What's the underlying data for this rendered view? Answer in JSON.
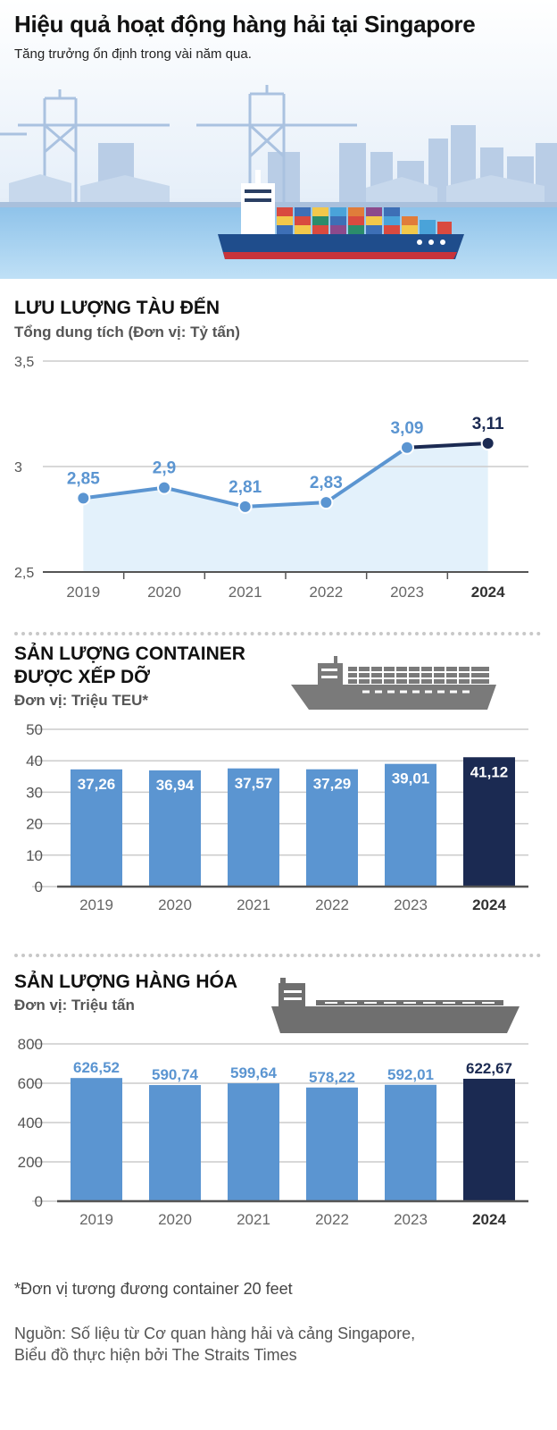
{
  "header": {
    "title": "Hiệu quả hoạt động hàng hải tại Singapore",
    "subtitle": "Tăng trưởng ổn định trong vài năm qua."
  },
  "colors": {
    "light_blue": "#5b95d1",
    "navy": "#1b2a52",
    "area_fill": "#e3f1fb",
    "grid": "#cccccc",
    "axis": "#555555"
  },
  "chart_data": [
    {
      "type": "line",
      "title": "LƯU LƯỢNG TÀU ĐẾN",
      "subtitle": "Tổng dung tích (Đơn vị: Tỷ tấn)",
      "x": [
        "2019",
        "2020",
        "2021",
        "2022",
        "2023",
        "2024"
      ],
      "values": [
        2.85,
        2.9,
        2.81,
        2.83,
        3.09,
        3.11
      ],
      "labels": [
        "2,85",
        "2,9",
        "2,81",
        "2,83",
        "3,09",
        "3,11"
      ],
      "ylim": [
        2.5,
        3.5
      ],
      "yticks": [
        "2,5",
        "3",
        "3,5"
      ],
      "grid": true
    },
    {
      "type": "bar",
      "title_line1": "SẢN LƯỢNG CONTAINER",
      "title_line2": "ĐƯỢC XẾP DỠ",
      "subtitle": "Đơn vị: Triệu TEU*",
      "categories": [
        "2019",
        "2020",
        "2021",
        "2022",
        "2023",
        "2024"
      ],
      "values": [
        37.26,
        36.94,
        37.57,
        37.29,
        39.01,
        41.12
      ],
      "labels": [
        "37,26",
        "36,94",
        "37,57",
        "37,29",
        "39,01",
        "41,12"
      ],
      "ylim": [
        0,
        50
      ],
      "yticks": [
        "0",
        "10",
        "20",
        "30",
        "40",
        "50"
      ],
      "grid": true
    },
    {
      "type": "bar",
      "title": "SẢN LƯỢNG HÀNG HÓA",
      "subtitle": "Đơn vị: Triệu tấn",
      "categories": [
        "2019",
        "2020",
        "2021",
        "2022",
        "2023",
        "2024"
      ],
      "values": [
        626.52,
        590.74,
        599.64,
        578.22,
        592.01,
        622.67
      ],
      "labels": [
        "626,52",
        "590,74",
        "599,64",
        "578,22",
        "592,01",
        "622,67"
      ],
      "ylim": [
        0,
        800
      ],
      "yticks": [
        "0",
        "200",
        "400",
        "600",
        "800"
      ],
      "grid": true
    }
  ],
  "footer": {
    "note": "*Đơn vị tương đương container 20 feet",
    "source_line1": "Nguồn: Số liệu từ Cơ quan hàng hải và cảng Singapore,",
    "source_line2": "Biểu đồ thực hiện bởi The Straits Times"
  }
}
